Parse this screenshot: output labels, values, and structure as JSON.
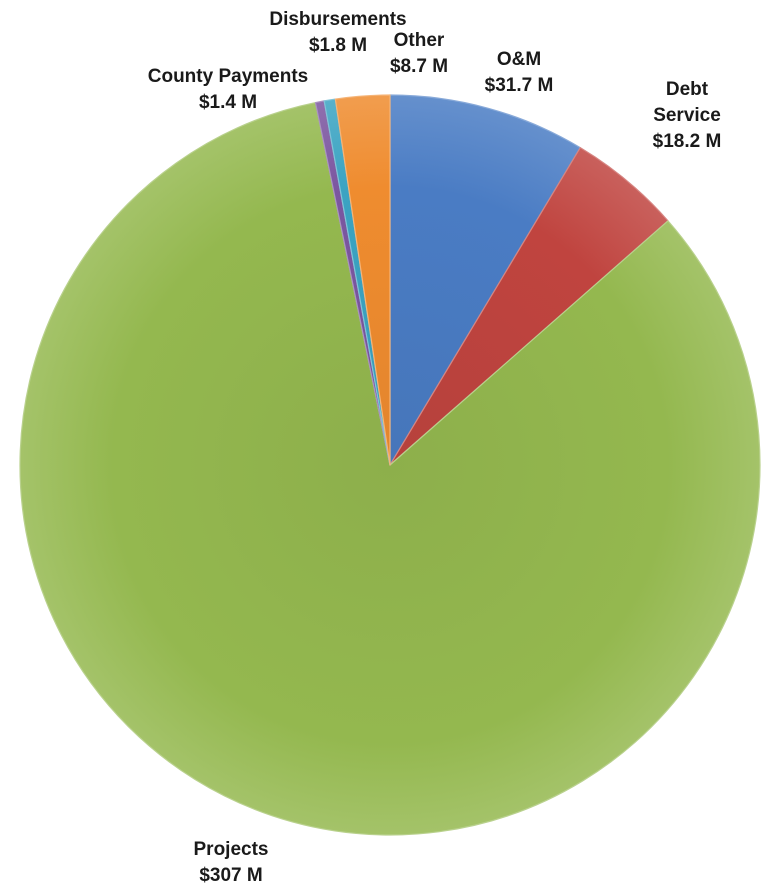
{
  "chart_data": {
    "type": "pie",
    "title": "",
    "start_angle_deg": 0,
    "direction": "clockwise",
    "slices": [
      {
        "label_lines": [
          "O&M",
          "$31.7 M"
        ],
        "category": "O&M",
        "value": 31.7,
        "color": "#4a7cc4"
      },
      {
        "label_lines": [
          "Debt",
          "Service",
          "$18.2 M"
        ],
        "category": "Debt Service",
        "value": 18.2,
        "color": "#c0443f"
      },
      {
        "label_lines": [
          "Projects",
          "$307 M"
        ],
        "category": "Projects",
        "value": 307,
        "color": "#94b84f"
      },
      {
        "label_lines": [
          "County Payments",
          "$1.4 M"
        ],
        "category": "County Payments",
        "value": 1.4,
        "color": "#7b56a0"
      },
      {
        "label_lines": [
          "Disbursements",
          "$1.8 M"
        ],
        "category": "Disbursements",
        "value": 1.8,
        "color": "#3ba3c2"
      },
      {
        "label_lines": [
          "Other",
          "$8.7 M"
        ],
        "category": "Other",
        "value": 8.7,
        "color": "#ef8c2f"
      }
    ]
  }
}
